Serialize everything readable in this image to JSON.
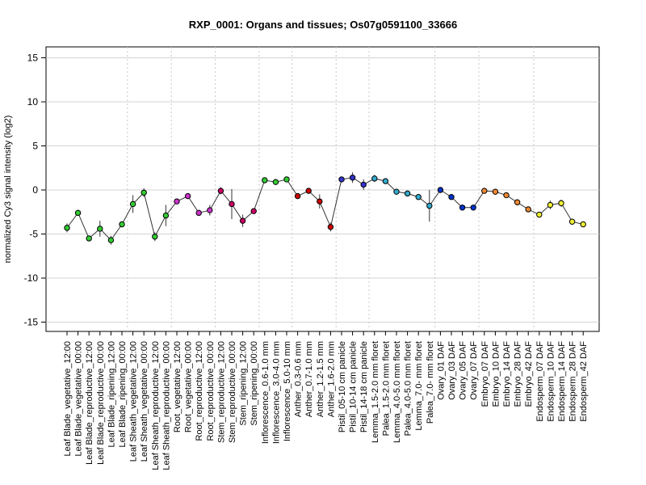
{
  "chart_data": {
    "type": "line",
    "title": "RXP_0001: Organs and tissues; Os07g0591100_33666",
    "xlabel": "",
    "ylabel": "normalized Cy3 signal intensity (log2)",
    "ylim": [
      -16,
      16
    ],
    "yticks": [
      -15,
      -10,
      -5,
      0,
      5,
      10,
      15
    ],
    "grid": true,
    "categories": [
      "Leaf Blade_vegetative_12:00",
      "Leaf Blade_vegetative_00:00",
      "Leaf Blade_reproductive_12:00",
      "Leaf Blade_reproductive_00:00",
      "Leaf Blade_ripening_12:00",
      "Leaf Blade_ripening_00:00",
      "Leaf Sheath_vegetative_12:00",
      "Leaf Sheath_vegetative_00:00",
      "Leaf Sheath_reproductive_12:00",
      "Leaf Sheath_reproductive_00:00",
      "Root_vegetative_12:00",
      "Root_vegetative_00:00",
      "Root_reproductive_12:00",
      "Root_reproductive_00:00",
      "Stem_reproductive_12:00",
      "Stem_reproductive_00:00",
      "Stem_ripening_12:00",
      "Stem_ripening_00:00",
      "Inflorescence_0.6-1.0 mm",
      "Inflorescence_3.0-4.0 mm",
      "Inflorescence_5.0-10 mm",
      "Anther_0.3-0.6 mm",
      "Anther_0.7-1.0 mm",
      "Anther_1.2-1.5 mm",
      "Anther_1.6-2.0 mm",
      "Pistil_05-10 cm panicle",
      "Pistil_10-14 cm panicle",
      "Pistil_14-18 cm panicle",
      "Lemma_1.5-2.0 mm floret",
      "Palea_1.5-2.0 mm floret",
      "Lemma_4.0-5.0 mm floret",
      "Palea_4.0-5.0 mm floret",
      "Lemma_7.0- mm floret",
      "Palea_7.0- mm floret",
      "Ovary_01 DAF",
      "Ovary_03 DAF",
      "Ovary_05 DAF",
      "Ovary_07 DAF",
      "Embryo_07 DAF",
      "Embryo_10 DAF",
      "Embryo_14 DAF",
      "Embryo_28 DAF",
      "Embryo_42 DAF",
      "Endosperm_07 DAF",
      "Endosperm_10 DAF",
      "Endosperm_14 DAF",
      "Endosperm_28 DAF",
      "Endosperm_42 DAF"
    ],
    "values": [
      -4.3,
      -2.6,
      -5.5,
      -4.4,
      -5.7,
      -3.9,
      -1.6,
      -0.3,
      -5.3,
      -2.9,
      -1.3,
      -0.7,
      -2.6,
      -2.3,
      -0.1,
      -1.6,
      -3.5,
      -2.4,
      1.1,
      0.9,
      1.2,
      -0.7,
      -0.1,
      -1.3,
      -4.2,
      1.2,
      1.4,
      0.6,
      1.3,
      1.0,
      -0.2,
      -0.4,
      -0.8,
      -1.8,
      0.0,
      -0.8,
      -2.0,
      -2.0,
      -0.1,
      -0.2,
      -0.6,
      -1.4,
      -2.2,
      -2.8,
      -1.7,
      -1.5,
      -3.6,
      -3.9
    ],
    "errors": [
      0.5,
      0.3,
      0.2,
      0.9,
      0.5,
      0.3,
      1.0,
      0.5,
      0.5,
      1.2,
      0.3,
      0.3,
      0.3,
      0.6,
      0.4,
      1.7,
      0.7,
      0.3,
      0.3,
      0.2,
      0.2,
      0.2,
      0.2,
      0.8,
      0.5,
      0.2,
      0.6,
      0.6,
      0.4,
      0.3,
      0.3,
      0.3,
      0.3,
      1.8,
      0.2,
      0.2,
      0.3,
      0.3,
      0.2,
      0.2,
      0.2,
      0.2,
      0.2,
      0.2,
      0.5,
      0.4,
      0.2,
      0.2
    ],
    "colors": [
      "#33cc33",
      "#33cc33",
      "#33cc33",
      "#33cc33",
      "#33cc33",
      "#33cc33",
      "#33cc33",
      "#33cc33",
      "#33cc33",
      "#33cc33",
      "#cc33cc",
      "#cc33cc",
      "#cc33cc",
      "#cc33cc",
      "#cc0066",
      "#cc0066",
      "#cc0066",
      "#cc0066",
      "#33cc33",
      "#33cc33",
      "#33cc33",
      "#cc0000",
      "#cc0000",
      "#cc0000",
      "#cc0000",
      "#3333cc",
      "#3333cc",
      "#3333cc",
      "#33aacc",
      "#33aacc",
      "#33aacc",
      "#33aacc",
      "#33aacc",
      "#33aacc",
      "#0033cc",
      "#0033cc",
      "#0033cc",
      "#0033cc",
      "#ee8833",
      "#ee8833",
      "#ee8833",
      "#ee8833",
      "#ee8833",
      "#eeee33",
      "#eeee33",
      "#eeee33",
      "#eeee33",
      "#eeee33"
    ],
    "vlines_after_index": [
      5,
      9,
      13,
      17,
      20,
      24,
      27,
      33,
      37,
      42
    ]
  }
}
